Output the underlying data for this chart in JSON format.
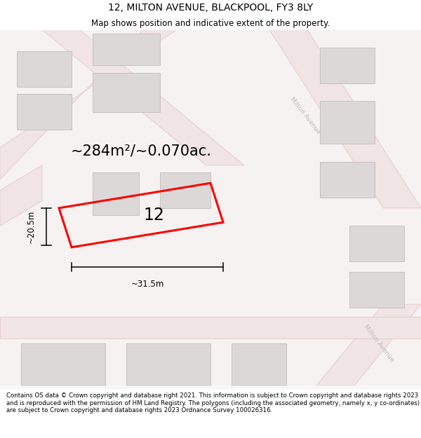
{
  "title": "12, MILTON AVENUE, BLACKPOOL, FY3 8LY",
  "subtitle": "Map shows position and indicative extent of the property.",
  "area_label": "~284m²/~0.070ac.",
  "number_label": "12",
  "width_label": "~31.5m",
  "height_label": "~20.5m",
  "footer": "Contains OS data © Crown copyright and database right 2021. This information is subject to Crown copyright and database rights 2023 and is reproduced with the permission of HM Land Registry. The polygons (including the associated geometry, namely x, y co-ordinates) are subject to Crown copyright and database rights 2023 Ordnance Survey 100026316.",
  "bg_color": "#ffffff",
  "map_bg": "#f7f2f2",
  "road_fill": "#f0e4e4",
  "road_edge": "#e8c8c8",
  "building_fill": "#ddd8d8",
  "building_edge": "#c8c0c0",
  "plot_color": "#ff0000",
  "street_label_color": "#bbbbbb",
  "title_fontsize": 10,
  "subtitle_fontsize": 8.5,
  "area_fontsize": 15,
  "number_fontsize": 17,
  "dim_fontsize": 8.5,
  "footer_fontsize": 6.2
}
